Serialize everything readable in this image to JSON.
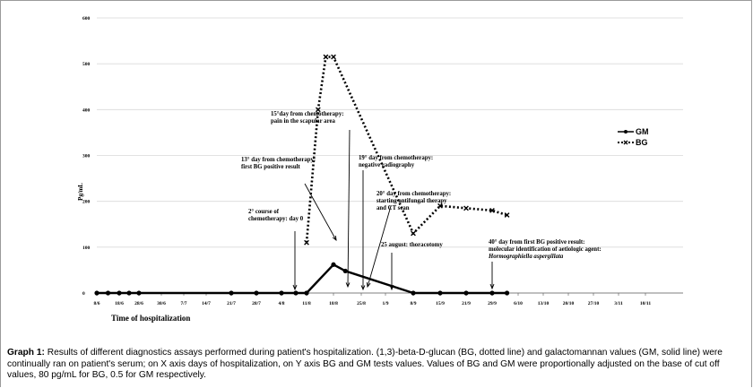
{
  "caption": {
    "label": "Graph 1:",
    "text": "Results of different diagnostics assays performed during patient's hospitalization. (1,3)-beta-D-glucan (BG, dotted line) and galactomannan values (GM, solid line) were continually ran on patient's serum; on X axis days of hospitalization, on Y axis BG and GM tests values. Values of BG and GM were proportionally adjusted on the base of cut off values, 80 pg/mL for BG, 0.5 for GM respectively."
  },
  "chart_data": {
    "type": "line",
    "xlabel": "Time of hospitalization",
    "ylabel": "Pg/mL",
    "ylim": [
      0,
      600
    ],
    "yticks": [
      "0",
      "100",
      "200",
      "300",
      "400",
      "500",
      "600"
    ],
    "grid": true,
    "legend": "right",
    "x_ticks": [
      "8/6",
      "18/6",
      "28/6",
      "30/6",
      "7/7",
      "14/7",
      "21/7",
      "28/7",
      "4/8",
      "11/8",
      "18/8",
      "25/8",
      "1/9",
      "8/9",
      "15/9",
      "21/9",
      "29/9",
      "6/10",
      "13/10",
      "20/10",
      "27/10",
      "3/11",
      "10/11"
    ],
    "series": [
      {
        "name": "GM",
        "style": "solid",
        "color": "#000000",
        "x": [
          "8/6",
          "13/6",
          "18/6",
          "23/6",
          "28/6",
          "21/7",
          "28/7",
          "4/8",
          "8/8",
          "11/8",
          "18/8",
          "21/8",
          "8/9",
          "15/9",
          "21/9",
          "29/9",
          "3/10"
        ],
        "values": [
          0,
          0,
          0,
          0,
          0,
          0,
          0,
          0,
          0,
          0,
          62,
          48,
          0,
          0,
          0,
          0,
          0
        ]
      },
      {
        "name": "BG",
        "style": "dotted",
        "color": "#000000",
        "x": [
          "11/8",
          "14/8",
          "16/8",
          "18/8",
          "8/9",
          "15/9",
          "21/9",
          "29/9",
          "3/10"
        ],
        "values": [
          110,
          400,
          515,
          515,
          130,
          190,
          185,
          180,
          170
        ]
      }
    ],
    "annotations": [
      {
        "lines": [
          "2° course of",
          "chemotherapy: day 0"
        ]
      },
      {
        "lines": [
          "13° day from chemotherapy:",
          "first BG positive result"
        ]
      },
      {
        "lines": [
          "15°day from chemotherapy:",
          "pain in the scapular area"
        ]
      },
      {
        "lines": [
          "19° day from chemotherapy:",
          "negative radiography"
        ]
      },
      {
        "lines": [
          "20° day from chemotherapy:",
          "starting antifungal therapy",
          "and CT scan"
        ]
      },
      {
        "lines": [
          "25 august: thoracotomy"
        ]
      },
      {
        "lines": [
          "40° day from first BG positive result:",
          "molecular identification of aetiologic agent:"
        ],
        "italic_line": "Hormographiella aspergillata"
      }
    ]
  }
}
